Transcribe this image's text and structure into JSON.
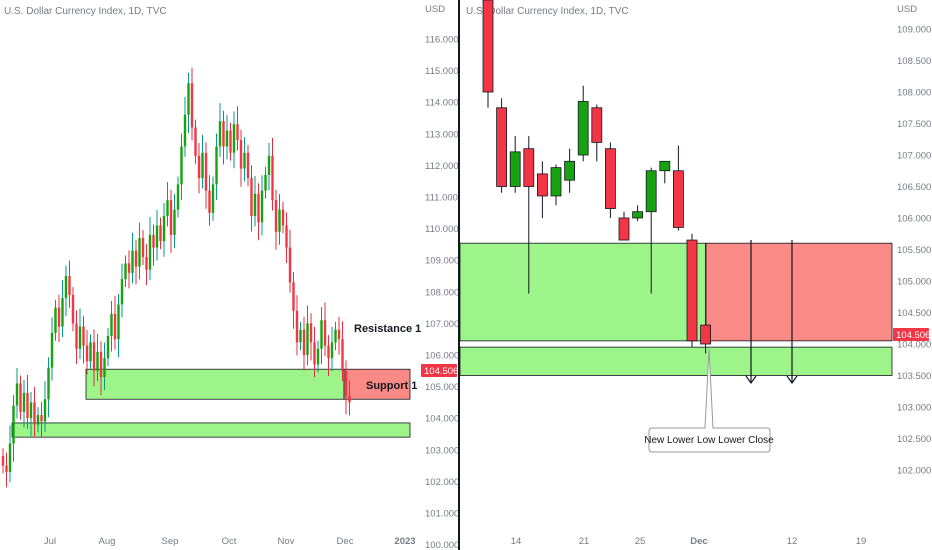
{
  "colors": {
    "up": "#089981",
    "up_body": "#16a30f",
    "down": "#e03040",
    "down_body": "#f23645",
    "support_zone": "#9df58a",
    "resistance_zone": "#f98a86",
    "price_tag": "#f23645",
    "axis_text": "#787b86",
    "separator": "#131722"
  },
  "chart_data": [
    {
      "type": "candlestick",
      "title": "U.S. Dollar Currency Index, 1D, TVC",
      "ylabel": "USD",
      "ylim": [
        99.4,
        116.9
      ],
      "yticks": [
        "116.000",
        "115.000",
        "114.000",
        "113.000",
        "112.000",
        "111.000",
        "110.000",
        "109.000",
        "108.000",
        "107.000",
        "106.000",
        "105.000",
        "104.000",
        "103.000",
        "102.000",
        "101.000",
        "100.000"
      ],
      "xticks": [
        "Jul",
        "Aug",
        "Sep",
        "Oct",
        "Nov",
        "Dec",
        "2023"
      ],
      "last_price": "104.506",
      "zones": [
        {
          "label": "Resistance 1",
          "low": 104.6,
          "high": 105.55,
          "kind": "support_zone"
        },
        {
          "label": "",
          "low": 104.6,
          "high": 105.55,
          "kind": "resistance_zone"
        },
        {
          "label": "Support 1",
          "low": 103.4,
          "high": 103.85,
          "kind": "support_zone"
        }
      ],
      "close_path": [
        [
          0,
          102.5
        ],
        [
          1,
          102.3
        ],
        [
          2,
          103.2
        ],
        [
          3,
          104.4
        ],
        [
          4,
          105.1
        ],
        [
          5,
          104.2
        ],
        [
          6,
          104.8
        ],
        [
          7,
          104.0
        ],
        [
          8,
          104.5
        ],
        [
          9,
          103.8
        ],
        [
          10,
          104.1
        ],
        [
          11,
          103.9
        ],
        [
          12,
          104.6
        ],
        [
          13,
          105.6
        ],
        [
          14,
          106.7
        ],
        [
          15,
          107.5
        ],
        [
          16,
          106.9
        ],
        [
          17,
          107.8
        ],
        [
          18,
          108.5
        ],
        [
          19,
          107.9
        ],
        [
          20,
          107.0
        ],
        [
          21,
          106.2
        ],
        [
          22,
          106.9
        ],
        [
          23,
          106.3
        ],
        [
          24,
          105.8
        ],
        [
          25,
          106.4
        ],
        [
          26,
          105.5
        ],
        [
          27,
          106.1
        ],
        [
          28,
          105.3
        ],
        [
          29,
          105.9
        ],
        [
          30,
          106.6
        ],
        [
          31,
          107.3
        ],
        [
          32,
          106.5
        ],
        [
          33,
          107.6
        ],
        [
          34,
          108.4
        ],
        [
          35,
          108.9
        ],
        [
          36,
          108.6
        ],
        [
          37,
          109.3
        ],
        [
          38,
          108.8
        ],
        [
          39,
          109.7
        ],
        [
          40,
          109.1
        ],
        [
          41,
          108.7
        ],
        [
          42,
          109.8
        ],
        [
          43,
          109.4
        ],
        [
          44,
          110.1
        ],
        [
          45,
          109.6
        ],
        [
          46,
          110.4
        ],
        [
          47,
          110.9
        ],
        [
          48,
          109.8
        ],
        [
          49,
          110.6
        ],
        [
          50,
          111.4
        ],
        [
          51,
          112.6
        ],
        [
          52,
          113.6
        ],
        [
          53,
          114.6
        ],
        [
          54,
          113.2
        ],
        [
          55,
          112.3
        ],
        [
          56,
          111.6
        ],
        [
          57,
          112.4
        ],
        [
          58,
          111.2
        ],
        [
          59,
          110.5
        ],
        [
          60,
          111.4
        ],
        [
          61,
          112.6
        ],
        [
          62,
          113.4
        ],
        [
          63,
          112.6
        ],
        [
          64,
          113.1
        ],
        [
          65,
          112.4
        ],
        [
          66,
          113.3
        ],
        [
          67,
          112.8
        ],
        [
          68,
          111.9
        ],
        [
          69,
          112.4
        ],
        [
          70,
          111.6
        ],
        [
          71,
          110.4
        ],
        [
          72,
          111.1
        ],
        [
          73,
          110.2
        ],
        [
          74,
          111.2
        ],
        [
          75,
          111.7
        ],
        [
          76,
          112.3
        ],
        [
          77,
          110.9
        ],
        [
          78,
          109.9
        ],
        [
          79,
          110.6
        ],
        [
          80,
          110.1
        ],
        [
          81,
          109.4
        ],
        [
          82,
          108.3
        ],
        [
          83,
          107.4
        ],
        [
          84,
          106.4
        ],
        [
          85,
          106.8
        ],
        [
          86,
          106.0
        ],
        [
          87,
          107.0
        ],
        [
          88,
          106.4
        ],
        [
          89,
          105.7
        ],
        [
          90,
          106.2
        ],
        [
          91,
          107.1
        ],
        [
          92,
          106.3
        ],
        [
          93,
          105.9
        ],
        [
          94,
          106.4
        ],
        [
          95,
          106.8
        ],
        [
          96,
          106.5
        ],
        [
          97,
          105.5
        ],
        [
          98,
          104.7
        ],
        [
          99,
          104.5
        ]
      ]
    },
    {
      "type": "candlestick",
      "title": "U.S. Dollar Currency Index, 1D, TVC",
      "ylabel": "USD",
      "ylim": [
        101.95,
        109.35
      ],
      "yticks": [
        "109.000",
        "108.500",
        "108.000",
        "107.500",
        "107.000",
        "106.500",
        "106.000",
        "105.500",
        "105.000",
        "104.500",
        "104.000",
        "103.500",
        "103.000",
        "102.500",
        "102.000"
      ],
      "xticks": [
        "14",
        "21",
        "25",
        "Dec",
        "12",
        "19"
      ],
      "last_price": "104.506",
      "candles": [
        {
          "x": 0,
          "o": 109.7,
          "h": 110.3,
          "l": 107.75,
          "c": 108.0
        },
        {
          "x": 1,
          "o": 107.75,
          "h": 107.9,
          "l": 106.4,
          "c": 106.5
        },
        {
          "x": 2,
          "o": 106.5,
          "h": 107.3,
          "l": 106.4,
          "c": 107.05
        },
        {
          "x": 3,
          "o": 107.1,
          "h": 107.3,
          "l": 104.8,
          "c": 106.5
        },
        {
          "x": 4,
          "o": 106.7,
          "h": 106.9,
          "l": 106.0,
          "c": 106.35
        },
        {
          "x": 5,
          "o": 106.35,
          "h": 106.85,
          "l": 106.2,
          "c": 106.8
        },
        {
          "x": 6,
          "o": 106.6,
          "h": 107.1,
          "l": 106.4,
          "c": 106.9
        },
        {
          "x": 7,
          "o": 107.0,
          "h": 108.1,
          "l": 106.9,
          "c": 107.85
        },
        {
          "x": 8,
          "o": 107.75,
          "h": 107.8,
          "l": 106.9,
          "c": 107.2
        },
        {
          "x": 9,
          "o": 107.1,
          "h": 107.2,
          "l": 106.0,
          "c": 106.15
        },
        {
          "x": 10,
          "o": 106.0,
          "h": 106.1,
          "l": 105.65,
          "c": 105.65
        },
        {
          "x": 11,
          "o": 106.0,
          "h": 106.2,
          "l": 105.95,
          "c": 106.1
        },
        {
          "x": 12,
          "o": 106.1,
          "h": 106.8,
          "l": 104.8,
          "c": 106.75
        },
        {
          "x": 13,
          "o": 106.75,
          "h": 106.85,
          "l": 106.55,
          "c": 106.9
        },
        {
          "x": 14,
          "o": 106.75,
          "h": 107.15,
          "l": 105.8,
          "c": 105.85
        },
        {
          "x": 15,
          "o": 105.65,
          "h": 105.75,
          "l": 103.95,
          "c": 104.05
        },
        {
          "x": 16,
          "o": 104.3,
          "h": 105.6,
          "l": 103.85,
          "c": 104.0
        }
      ],
      "zones": [
        {
          "label": "",
          "low": 104.05,
          "high": 105.6,
          "kind": "support_zone"
        },
        {
          "label": "",
          "low": 104.05,
          "high": 105.6,
          "kind": "resistance_zone"
        },
        {
          "label": "",
          "low": 103.5,
          "high": 103.95,
          "kind": "support_zone"
        }
      ],
      "annotation": "New Lower Low Lower Close"
    }
  ]
}
